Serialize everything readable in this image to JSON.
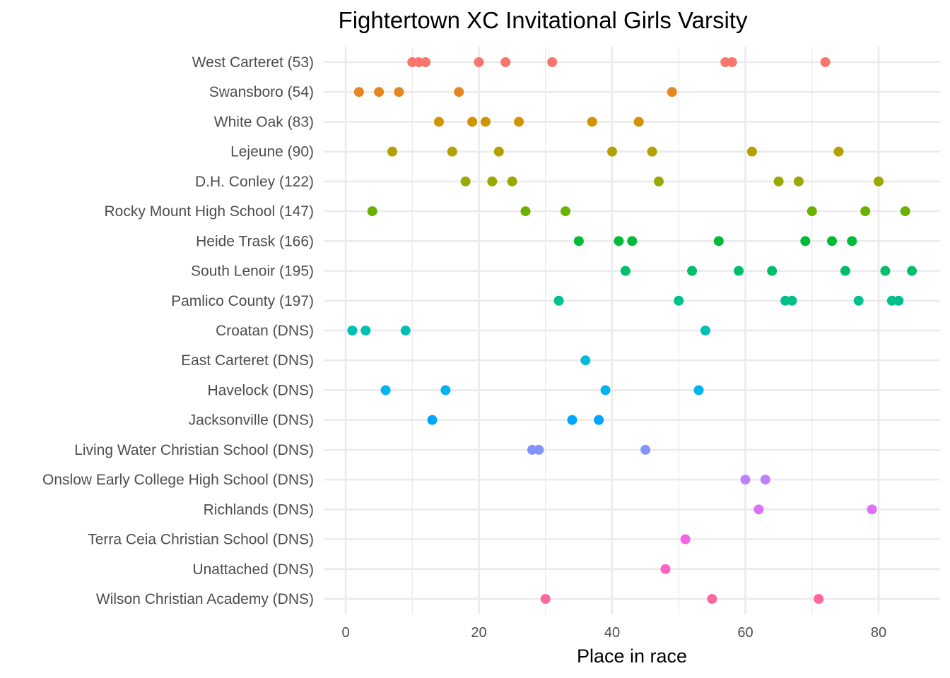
{
  "chart_data": {
    "type": "scatter",
    "title": "Fightertown XC Invitational Girls Varsity",
    "xlabel": "Place in race",
    "ylabel": "",
    "xlim": [
      -2,
      89
    ],
    "x_ticks": [
      0,
      20,
      40,
      60,
      80
    ],
    "x_minor_ticks": [
      10,
      30,
      50,
      70
    ],
    "grid": true,
    "legend": "none",
    "categories": [
      "West Carteret (53)",
      "Swansboro (54)",
      "White Oak (83)",
      "Lejeune (90)",
      "D.H. Conley (122)",
      "Rocky Mount High School (147)",
      "Heide Trask (166)",
      "South Lenoir (195)",
      "Pamlico County (197)",
      "Croatan (DNS)",
      "East Carteret (DNS)",
      "Havelock (DNS)",
      "Jacksonville (DNS)",
      "Living Water Christian School (DNS)",
      "Onslow Early College High School (DNS)",
      "Richlands (DNS)",
      "Terra Ceia Christian School (DNS)",
      "Unattached (DNS)",
      "Wilson Christian Academy (DNS)"
    ],
    "series": [
      {
        "name": "West Carteret (53)",
        "color": "#F8766D",
        "values": [
          10,
          11,
          12,
          20,
          24,
          31,
          57,
          58,
          72
        ]
      },
      {
        "name": "Swansboro (54)",
        "color": "#E7851E",
        "values": [
          2,
          5,
          8,
          17,
          49
        ]
      },
      {
        "name": "White Oak (83)",
        "color": "#D09400",
        "values": [
          14,
          19,
          21,
          26,
          37,
          44
        ]
      },
      {
        "name": "Lejeune (90)",
        "color": "#B2A100",
        "values": [
          7,
          16,
          23,
          40,
          46,
          61,
          74
        ]
      },
      {
        "name": "D.H. Conley (122)",
        "color": "#9AA800",
        "values": [
          18,
          22,
          25,
          47,
          65,
          68,
          80
        ]
      },
      {
        "name": "Rocky Mount High School (147)",
        "color": "#6BB100",
        "values": [
          4,
          27,
          33,
          70,
          78,
          84
        ]
      },
      {
        "name": "Heide Trask (166)",
        "color": "#00BA38",
        "values": [
          35,
          41,
          43,
          56,
          69,
          73,
          76
        ]
      },
      {
        "name": "South Lenoir (195)",
        "color": "#00BE6C",
        "values": [
          42,
          52,
          59,
          64,
          75,
          81,
          85
        ]
      },
      {
        "name": "Pamlico County (197)",
        "color": "#00C08E",
        "values": [
          32,
          50,
          66,
          67,
          77,
          82,
          83
        ]
      },
      {
        "name": "Croatan (DNS)",
        "color": "#00C0B5",
        "values": [
          1,
          3,
          9,
          54
        ]
      },
      {
        "name": "East Carteret (DNS)",
        "color": "#00BCD6",
        "values": [
          36
        ]
      },
      {
        "name": "Havelock (DNS)",
        "color": "#00B4EF",
        "values": [
          6,
          15,
          39,
          53
        ]
      },
      {
        "name": "Jacksonville (DNS)",
        "color": "#00A5FF",
        "values": [
          13,
          34,
          38
        ]
      },
      {
        "name": "Living Water Christian School (DNS)",
        "color": "#8494FF",
        "values": [
          28,
          29,
          45
        ]
      },
      {
        "name": "Onslow Early College High School (DNS)",
        "color": "#BB81FF",
        "values": [
          60,
          63
        ]
      },
      {
        "name": "Richlands (DNS)",
        "color": "#DF70F8",
        "values": [
          62,
          79
        ]
      },
      {
        "name": "Terra Ceia Christian School (DNS)",
        "color": "#F564E3",
        "values": [
          51
        ]
      },
      {
        "name": "Unattached (DNS)",
        "color": "#FF61C3",
        "values": [
          48
        ]
      },
      {
        "name": "Wilson Christian Academy (DNS)",
        "color": "#FF689F",
        "values": [
          30,
          55,
          71
        ]
      }
    ]
  }
}
